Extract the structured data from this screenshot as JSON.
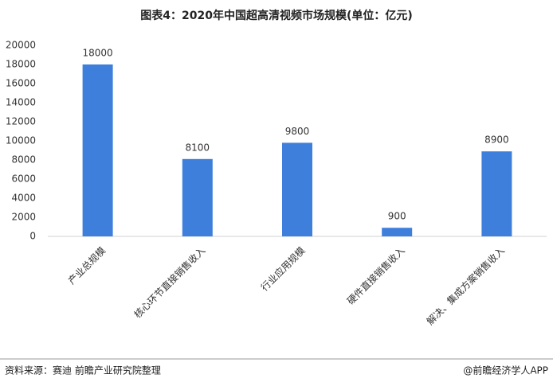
{
  "chart_data": {
    "type": "bar",
    "title": "图表4：2020年中国超高清视频市场规模(单位：亿元)",
    "categories": [
      "产业总规模",
      "核心环节直接销售收入",
      "行业应用规模",
      "硬件直接销售收入",
      "解决、集成方案销售收入"
    ],
    "values": [
      18000,
      8100,
      9800,
      900,
      8900
    ],
    "color": "#3f7fdc",
    "ylim": [
      0,
      20000
    ],
    "yticks": [
      0,
      2000,
      4000,
      6000,
      8000,
      10000,
      12000,
      14000,
      16000,
      18000,
      20000
    ],
    "grid": false,
    "source": "资料来源：赛迪 前瞻产业研究院整理",
    "credit": "@前瞻经济学人APP"
  }
}
